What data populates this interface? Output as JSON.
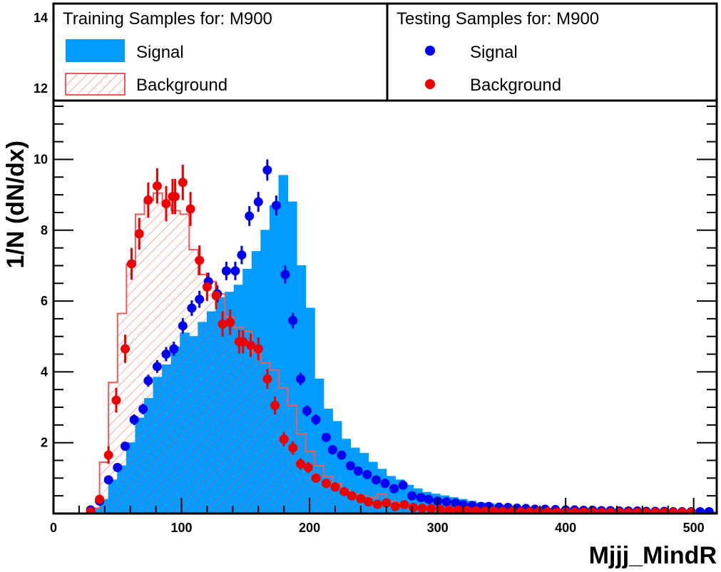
{
  "chart_data": {
    "type": "histogram",
    "xlabel": "Mjjj_MindR",
    "ylabel": "1/N (dN/dx)",
    "xlim": [
      0,
      518
    ],
    "ylim": [
      0,
      14.4
    ],
    "x_ticks": [
      "0",
      "100",
      "200",
      "300",
      "400",
      "500"
    ],
    "y_ticks": [
      "2",
      "4",
      "6",
      "8",
      "10",
      "12",
      "14"
    ],
    "legend": {
      "training_title": "Training Samples for: M900",
      "testing_title": "Testing Samples for: M900",
      "training_entries": [
        "Signal",
        "Background"
      ],
      "testing_entries": [
        "Signal",
        "Background"
      ]
    },
    "colors": {
      "signal_fill": "#009cff",
      "background_line": "#f05a5a",
      "signal_marker": "#0000ee",
      "background_marker": "#ee0000"
    },
    "bin_width": 7.2,
    "training_signal_edges": [
      29,
      36,
      43,
      50,
      57,
      64,
      71,
      78,
      85,
      92,
      99,
      106,
      113,
      120,
      127,
      134,
      141,
      148,
      155,
      162,
      169,
      176,
      183,
      190,
      197,
      204,
      211,
      218,
      225,
      232,
      239,
      246,
      253,
      260,
      267,
      274,
      281,
      288,
      295,
      302,
      309,
      316,
      323,
      330,
      337,
      344,
      351,
      358,
      365,
      372,
      379,
      386,
      393,
      400,
      407,
      414,
      421,
      428,
      435,
      442,
      449,
      456,
      463,
      470,
      477,
      484,
      491,
      498,
      505,
      512,
      518
    ],
    "training_signal": [
      0.12,
      0.4,
      0.95,
      1.35,
      2.0,
      2.7,
      3.25,
      3.85,
      4.2,
      4.7,
      5.1,
      5.0,
      5.4,
      5.7,
      6.1,
      6.25,
      6.45,
      6.9,
      7.4,
      8.0,
      8.7,
      9.55,
      8.8,
      7.0,
      5.8,
      3.8,
      2.95,
      2.6,
      2.1,
      1.85,
      1.7,
      1.45,
      1.25,
      1.05,
      0.95,
      0.8,
      0.7,
      0.6,
      0.55,
      0.5,
      0.45,
      0.4,
      0.35,
      0.3,
      0.28,
      0.25,
      0.22,
      0.2,
      0.19,
      0.17,
      0.15,
      0.14,
      0.13,
      0.12,
      0.11,
      0.1,
      0.1,
      0.09,
      0.09,
      0.08,
      0.08,
      0.07,
      0.07,
      0.07,
      0.06,
      0.06,
      0.06,
      0.05,
      0.05,
      0.05
    ],
    "training_background_edges": [
      0,
      29,
      36,
      43,
      50,
      57,
      64,
      71,
      78,
      85,
      92,
      99,
      106,
      113,
      120,
      127,
      134,
      141,
      148,
      155,
      162,
      169,
      176,
      183,
      190,
      197,
      204,
      211,
      218,
      225,
      232,
      239,
      246,
      253,
      260,
      267,
      274,
      281,
      288,
      295,
      302,
      309,
      316,
      323,
      330,
      337,
      344,
      351,
      358,
      365,
      372,
      379,
      386,
      393,
      400,
      407,
      414,
      421,
      428,
      435,
      442,
      449,
      456,
      463,
      470,
      477,
      484,
      491,
      498,
      505,
      512,
      518
    ],
    "training_background": [
      0.0,
      0.15,
      1.45,
      3.7,
      5.65,
      7.05,
      8.45,
      8.85,
      9.05,
      8.7,
      8.55,
      8.45,
      7.45,
      6.75,
      6.55,
      6.2,
      5.55,
      5.25,
      5.15,
      4.55,
      4.25,
      4.05,
      3.55,
      3.05,
      2.25,
      1.75,
      1.35,
      1.05,
      0.85,
      0.65,
      0.55,
      0.5,
      0.45,
      0.55,
      0.35,
      0.3,
      0.25,
      0.22,
      0.2,
      0.18,
      0.16,
      0.14,
      0.12,
      0.11,
      0.1,
      0.1,
      0.09,
      0.08,
      0.08,
      0.07,
      0.07,
      0.06,
      0.06,
      0.06,
      0.05,
      0.05,
      0.05,
      0.05,
      0.04,
      0.04,
      0.04,
      0.04,
      0.04,
      0.04,
      0.03,
      0.03,
      0.03,
      0.03,
      0.03,
      0.03,
      0.03
    ],
    "testing_signal": {
      "x": [
        29,
        36,
        43,
        50,
        56,
        63,
        70,
        74,
        81,
        88,
        94,
        101,
        108,
        114,
        121,
        128,
        135,
        142,
        147,
        153,
        160,
        167,
        174,
        181,
        187,
        193,
        198,
        205,
        213,
        218,
        225,
        232,
        238,
        245,
        252,
        259,
        266,
        273,
        280,
        287,
        293,
        300,
        307,
        314,
        320,
        327,
        334,
        340,
        348,
        355,
        362,
        369,
        376,
        384,
        392,
        400,
        407,
        414,
        421,
        428,
        435,
        442,
        449,
        456,
        463,
        470,
        477,
        484,
        491,
        498,
        505,
        512
      ],
      "y": [
        0.1,
        0.35,
        0.95,
        1.3,
        1.9,
        2.65,
        2.95,
        3.75,
        4.15,
        4.5,
        4.65,
        5.3,
        5.8,
        6.05,
        6.55,
        6.2,
        6.85,
        6.85,
        7.3,
        8.4,
        8.8,
        9.7,
        8.7,
        6.75,
        5.45,
        3.8,
        2.9,
        2.65,
        2.15,
        1.8,
        1.65,
        1.35,
        1.2,
        1.1,
        0.95,
        0.85,
        0.7,
        0.8,
        0.5,
        0.45,
        0.4,
        0.35,
        0.33,
        0.3,
        0.25,
        0.22,
        0.2,
        0.2,
        0.18,
        0.17,
        0.15,
        0.14,
        0.12,
        0.12,
        0.11,
        0.1,
        0.1,
        0.09,
        0.09,
        0.08,
        0.08,
        0.07,
        0.07,
        0.07,
        0.06,
        0.06,
        0.06,
        0.05,
        0.05,
        0.05,
        0.05,
        0.05
      ],
      "err": [
        0.03,
        0.06,
        0.1,
        0.12,
        0.12,
        0.15,
        0.15,
        0.17,
        0.18,
        0.2,
        0.2,
        0.22,
        0.22,
        0.24,
        0.25,
        0.24,
        0.26,
        0.26,
        0.26,
        0.28,
        0.28,
        0.3,
        0.28,
        0.25,
        0.22,
        0.18,
        0.15,
        0.15,
        0.12,
        0.12,
        0.1,
        0.1,
        0.09,
        0.09,
        0.08,
        0.08,
        0.07,
        0.08,
        0.06,
        0.06,
        0.05,
        0.05,
        0.05,
        0.05,
        0.04,
        0.04,
        0.04,
        0.04,
        0.04,
        0.04,
        0.03,
        0.03,
        0.03,
        0.03,
        0.03,
        0.03,
        0.03,
        0.03,
        0.03,
        0.03,
        0.03,
        0.02,
        0.02,
        0.02,
        0.02,
        0.02,
        0.02,
        0.02,
        0.02,
        0.02,
        0.02,
        0.02
      ]
    },
    "testing_background": {
      "x": [
        29,
        36,
        43,
        49,
        56,
        61,
        67,
        74,
        81,
        88,
        93,
        95,
        101,
        107,
        114,
        120,
        127,
        132,
        138,
        145,
        148,
        154,
        160,
        167,
        173,
        180,
        187,
        193,
        199,
        205,
        213,
        220,
        227,
        233,
        240,
        246,
        253,
        260,
        267,
        274,
        281,
        288,
        295,
        302,
        309,
        316,
        323,
        330,
        337,
        344,
        351,
        358,
        365,
        372,
        379,
        386,
        393,
        400,
        407,
        414,
        421,
        428,
        435,
        442,
        449,
        456,
        463,
        470,
        477,
        484,
        491,
        498
      ],
      "y": [
        0.05,
        0.4,
        1.65,
        3.2,
        4.65,
        7.05,
        7.9,
        8.85,
        9.25,
        8.75,
        8.95,
        8.95,
        9.35,
        8.6,
        7.15,
        6.4,
        6.15,
        5.35,
        5.4,
        4.85,
        4.85,
        4.75,
        4.65,
        3.8,
        3.05,
        2.1,
        1.85,
        1.4,
        1.3,
        1.0,
        0.85,
        0.75,
        0.62,
        0.5,
        0.42,
        0.33,
        0.26,
        0.3,
        0.2,
        0.25,
        0.17,
        0.15,
        0.14,
        0.12,
        0.1,
        0.1,
        0.09,
        0.08,
        0.07,
        0.07,
        0.06,
        0.06,
        0.05,
        0.05,
        0.05,
        0.05,
        0.04,
        0.04,
        0.04,
        0.04,
        0.04,
        0.03,
        0.03,
        0.03,
        0.03,
        0.03,
        0.03,
        0.03,
        0.03,
        0.03,
        0.03,
        0.03
      ],
      "err": [
        0.03,
        0.1,
        0.25,
        0.35,
        0.4,
        0.45,
        0.45,
        0.5,
        0.5,
        0.5,
        0.5,
        0.5,
        0.5,
        0.48,
        0.42,
        0.4,
        0.38,
        0.36,
        0.36,
        0.33,
        0.33,
        0.33,
        0.32,
        0.28,
        0.25,
        0.2,
        0.19,
        0.16,
        0.15,
        0.13,
        0.12,
        0.11,
        0.1,
        0.09,
        0.08,
        0.07,
        0.06,
        0.07,
        0.05,
        0.06,
        0.05,
        0.04,
        0.04,
        0.04,
        0.03,
        0.03,
        0.03,
        0.03,
        0.03,
        0.03,
        0.02,
        0.02,
        0.02,
        0.02,
        0.02,
        0.02,
        0.02,
        0.02,
        0.02,
        0.02,
        0.02,
        0.02,
        0.02,
        0.02,
        0.02,
        0.02,
        0.02,
        0.02,
        0.02,
        0.02,
        0.02,
        0.02
      ]
    }
  }
}
